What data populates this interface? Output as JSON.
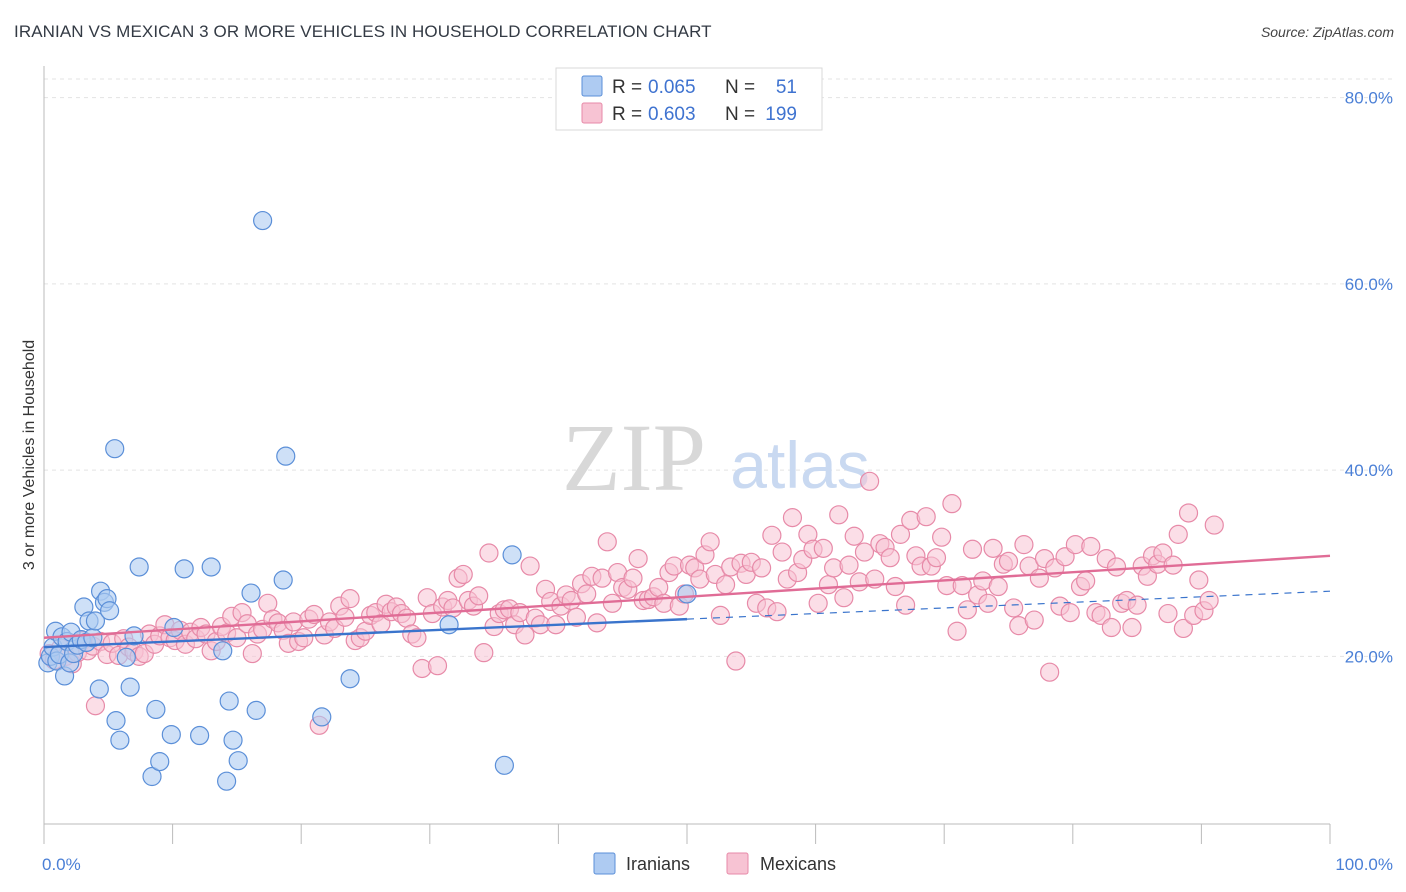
{
  "title": "IRANIAN VS MEXICAN 3 OR MORE VEHICLES IN HOUSEHOLD CORRELATION CHART",
  "source": "Source: ZipAtlas.com",
  "watermark": {
    "zip": "ZIP",
    "atlas": "atlas"
  },
  "legend_top": {
    "rows": [
      {
        "r_label": "R = ",
        "r_value": "0.065",
        "n_label": "N = ",
        "n_value": "51"
      },
      {
        "r_label": "R = ",
        "r_value": "0.603",
        "n_label": "N = ",
        "n_value": "199"
      }
    ]
  },
  "legend_bottom": {
    "iranians": "Iranians",
    "mexicans": "Mexicans"
  },
  "colors": {
    "iranian_fill": "#aecbf2",
    "iranian_stroke": "#5b8fd8",
    "iranian_line": "#3a74cc",
    "mexican_fill": "#f7c3d3",
    "mexican_stroke": "#e78aa8",
    "mexican_line": "#e06c96",
    "tick_text": "#4a7fd6"
  },
  "chart_data": {
    "type": "scatter",
    "ylabel": "3 or more Vehicles in Household",
    "xlim": [
      0,
      100
    ],
    "ylim": [
      2,
      82
    ],
    "x_tick_labels": [
      "0.0%",
      "100.0%"
    ],
    "y_ticks": [
      20,
      40,
      60,
      80
    ],
    "y_tick_labels": [
      "20.0%",
      "40.0%",
      "60.0%",
      "80.0%"
    ],
    "grid": true,
    "legend_position": "top-center",
    "series": [
      {
        "name": "Iranians",
        "R": 0.065,
        "N": 51,
        "trend": {
          "x0": 0,
          "y0": 21.0,
          "x1": 50,
          "y1": 24.0,
          "dashed_to_x": 100,
          "dashed_to_y": 27.0
        },
        "points": [
          [
            0.3,
            19.3
          ],
          [
            0.5,
            20.0
          ],
          [
            0.7,
            21.0
          ],
          [
            0.9,
            22.7
          ],
          [
            1.0,
            19.5
          ],
          [
            1.2,
            20.2
          ],
          [
            1.4,
            22.1
          ],
          [
            1.6,
            17.9
          ],
          [
            1.8,
            21.6
          ],
          [
            2.0,
            19.3
          ],
          [
            2.1,
            22.6
          ],
          [
            2.3,
            20.3
          ],
          [
            2.6,
            21.2
          ],
          [
            2.9,
            21.8
          ],
          [
            3.1,
            25.3
          ],
          [
            3.3,
            21.5
          ],
          [
            3.5,
            23.8
          ],
          [
            3.8,
            22.0
          ],
          [
            4.0,
            23.8
          ],
          [
            4.3,
            16.5
          ],
          [
            4.4,
            27.0
          ],
          [
            4.7,
            25.8
          ],
          [
            4.9,
            26.2
          ],
          [
            5.1,
            24.9
          ],
          [
            5.5,
            42.3
          ],
          [
            5.6,
            13.1
          ],
          [
            5.9,
            11.0
          ],
          [
            6.4,
            19.9
          ],
          [
            6.7,
            16.7
          ],
          [
            7.0,
            22.2
          ],
          [
            7.4,
            29.6
          ],
          [
            8.4,
            7.1
          ],
          [
            8.7,
            14.3
          ],
          [
            9.0,
            8.7
          ],
          [
            9.9,
            11.6
          ],
          [
            10.1,
            23.1
          ],
          [
            10.9,
            29.4
          ],
          [
            12.1,
            11.5
          ],
          [
            13.0,
            29.6
          ],
          [
            13.9,
            20.6
          ],
          [
            14.2,
            6.6
          ],
          [
            14.4,
            15.2
          ],
          [
            14.7,
            11.0
          ],
          [
            15.1,
            8.8
          ],
          [
            16.1,
            26.8
          ],
          [
            16.5,
            14.2
          ],
          [
            17.0,
            66.8
          ],
          [
            18.6,
            28.2
          ],
          [
            18.8,
            41.5
          ],
          [
            21.6,
            13.5
          ],
          [
            23.8,
            17.6
          ],
          [
            31.5,
            23.4
          ],
          [
            35.8,
            8.3
          ],
          [
            36.4,
            30.9
          ],
          [
            50.0,
            26.7
          ]
        ]
      },
      {
        "name": "Mexicans",
        "R": 0.603,
        "N": 199,
        "trend": {
          "x0": 0,
          "y0": 22.0,
          "x1": 100,
          "y1": 30.8
        },
        "points": [
          [
            0.4,
            20.3
          ],
          [
            0.8,
            19.6
          ],
          [
            1.3,
            20.9
          ],
          [
            1.7,
            20.0
          ],
          [
            2.2,
            19.2
          ],
          [
            2.6,
            20.4
          ],
          [
            3.0,
            21.7
          ],
          [
            3.4,
            20.6
          ],
          [
            3.8,
            21.1
          ],
          [
            4.0,
            14.7
          ],
          [
            4.4,
            21.6
          ],
          [
            4.9,
            20.2
          ],
          [
            5.3,
            21.4
          ],
          [
            5.8,
            20.1
          ],
          [
            6.2,
            21.9
          ],
          [
            6.6,
            21.0
          ],
          [
            7.0,
            20.5
          ],
          [
            7.4,
            20.0
          ],
          [
            7.8,
            20.3
          ],
          [
            8.2,
            22.4
          ],
          [
            8.6,
            21.3
          ],
          [
            9.0,
            22.2
          ],
          [
            9.4,
            23.4
          ],
          [
            9.8,
            22.0
          ],
          [
            10.2,
            21.7
          ],
          [
            10.6,
            22.8
          ],
          [
            11.0,
            21.3
          ],
          [
            11.4,
            22.6
          ],
          [
            11.8,
            21.9
          ],
          [
            12.2,
            23.1
          ],
          [
            12.6,
            22.4
          ],
          [
            13.0,
            20.6
          ],
          [
            13.4,
            21.6
          ],
          [
            13.8,
            23.2
          ],
          [
            14.2,
            22.5
          ],
          [
            14.6,
            24.3
          ],
          [
            15.0,
            22.0
          ],
          [
            15.4,
            24.7
          ],
          [
            15.8,
            23.5
          ],
          [
            16.2,
            20.3
          ],
          [
            16.6,
            22.4
          ],
          [
            17.0,
            22.9
          ],
          [
            17.4,
            25.7
          ],
          [
            17.8,
            24.0
          ],
          [
            18.2,
            23.6
          ],
          [
            18.6,
            22.8
          ],
          [
            19.0,
            21.4
          ],
          [
            19.4,
            23.7
          ],
          [
            19.8,
            21.6
          ],
          [
            20.2,
            22.0
          ],
          [
            20.6,
            24.0
          ],
          [
            21.0,
            24.5
          ],
          [
            21.4,
            12.6
          ],
          [
            21.8,
            22.3
          ],
          [
            22.2,
            23.7
          ],
          [
            22.6,
            23.0
          ],
          [
            23.0,
            25.4
          ],
          [
            23.4,
            24.2
          ],
          [
            23.8,
            26.2
          ],
          [
            24.2,
            21.7
          ],
          [
            24.6,
            22.0
          ],
          [
            25.0,
            22.7
          ],
          [
            25.4,
            24.4
          ],
          [
            25.8,
            24.7
          ],
          [
            26.2,
            23.5
          ],
          [
            26.6,
            25.6
          ],
          [
            27.0,
            24.8
          ],
          [
            27.4,
            25.3
          ],
          [
            27.8,
            24.6
          ],
          [
            28.2,
            24.1
          ],
          [
            28.6,
            22.4
          ],
          [
            29.0,
            22.0
          ],
          [
            29.4,
            18.7
          ],
          [
            29.8,
            26.3
          ],
          [
            30.2,
            24.6
          ],
          [
            30.6,
            19.0
          ],
          [
            31.0,
            25.3
          ],
          [
            31.4,
            26.0
          ],
          [
            31.8,
            25.2
          ],
          [
            32.2,
            28.4
          ],
          [
            32.6,
            28.8
          ],
          [
            33.0,
            26.0
          ],
          [
            33.4,
            25.4
          ],
          [
            33.8,
            26.5
          ],
          [
            34.2,
            20.4
          ],
          [
            34.6,
            31.1
          ],
          [
            35.0,
            23.2
          ],
          [
            35.4,
            24.6
          ],
          [
            35.8,
            25.0
          ],
          [
            36.2,
            25.1
          ],
          [
            36.6,
            23.4
          ],
          [
            37.0,
            24.7
          ],
          [
            37.4,
            22.3
          ],
          [
            37.8,
            29.7
          ],
          [
            38.2,
            24.1
          ],
          [
            38.6,
            23.4
          ],
          [
            39.0,
            27.2
          ],
          [
            39.4,
            25.9
          ],
          [
            39.8,
            23.4
          ],
          [
            40.2,
            25.4
          ],
          [
            40.6,
            26.6
          ],
          [
            41.0,
            26.0
          ],
          [
            41.4,
            24.2
          ],
          [
            41.8,
            27.8
          ],
          [
            42.2,
            26.7
          ],
          [
            42.6,
            28.6
          ],
          [
            43.0,
            23.6
          ],
          [
            43.4,
            28.4
          ],
          [
            43.8,
            32.3
          ],
          [
            44.2,
            25.7
          ],
          [
            44.6,
            29.0
          ],
          [
            45.0,
            27.4
          ],
          [
            45.4,
            27.2
          ],
          [
            45.8,
            28.4
          ],
          [
            46.2,
            30.5
          ],
          [
            46.6,
            26.0
          ],
          [
            47.0,
            26.1
          ],
          [
            47.4,
            26.4
          ],
          [
            47.8,
            27.4
          ],
          [
            48.2,
            25.7
          ],
          [
            48.6,
            29.0
          ],
          [
            49.0,
            29.7
          ],
          [
            49.4,
            25.4
          ],
          [
            49.8,
            26.7
          ],
          [
            50.2,
            29.8
          ],
          [
            50.6,
            29.5
          ],
          [
            51.0,
            28.3
          ],
          [
            51.4,
            30.9
          ],
          [
            51.8,
            32.3
          ],
          [
            52.2,
            28.8
          ],
          [
            52.6,
            24.4
          ],
          [
            53.0,
            27.7
          ],
          [
            53.4,
            29.6
          ],
          [
            53.8,
            19.5
          ],
          [
            54.2,
            30.0
          ],
          [
            54.6,
            28.8
          ],
          [
            55.0,
            30.1
          ],
          [
            55.4,
            25.7
          ],
          [
            55.8,
            29.5
          ],
          [
            56.2,
            25.2
          ],
          [
            56.6,
            33.0
          ],
          [
            57.0,
            24.8
          ],
          [
            57.4,
            31.2
          ],
          [
            57.8,
            28.3
          ],
          [
            58.2,
            34.9
          ],
          [
            58.6,
            29.0
          ],
          [
            59.0,
            30.4
          ],
          [
            59.4,
            33.1
          ],
          [
            59.8,
            31.5
          ],
          [
            60.2,
            25.7
          ],
          [
            60.6,
            31.6
          ],
          [
            61.0,
            27.7
          ],
          [
            61.4,
            29.5
          ],
          [
            61.8,
            35.2
          ],
          [
            62.2,
            26.3
          ],
          [
            62.6,
            29.8
          ],
          [
            63.0,
            32.9
          ],
          [
            63.4,
            28.0
          ],
          [
            63.8,
            31.2
          ],
          [
            64.2,
            38.8
          ],
          [
            64.6,
            28.3
          ],
          [
            65.0,
            32.1
          ],
          [
            65.4,
            31.7
          ],
          [
            65.8,
            30.6
          ],
          [
            66.2,
            27.5
          ],
          [
            66.6,
            33.1
          ],
          [
            67.0,
            25.5
          ],
          [
            67.4,
            34.6
          ],
          [
            67.8,
            30.8
          ],
          [
            68.2,
            29.7
          ],
          [
            68.6,
            35.0
          ],
          [
            69.0,
            29.7
          ],
          [
            69.4,
            30.6
          ],
          [
            69.8,
            32.8
          ],
          [
            70.2,
            27.6
          ],
          [
            70.6,
            36.4
          ],
          [
            71.0,
            22.7
          ],
          [
            71.4,
            27.6
          ],
          [
            71.8,
            25.0
          ],
          [
            72.2,
            31.5
          ],
          [
            72.6,
            26.6
          ],
          [
            73.0,
            28.1
          ],
          [
            73.4,
            25.7
          ],
          [
            73.8,
            31.6
          ],
          [
            74.2,
            27.5
          ],
          [
            74.6,
            29.9
          ],
          [
            75.0,
            30.2
          ],
          [
            75.4,
            25.2
          ],
          [
            75.8,
            23.3
          ],
          [
            76.2,
            32.0
          ],
          [
            76.6,
            29.7
          ],
          [
            77.0,
            23.9
          ],
          [
            77.4,
            28.4
          ],
          [
            77.8,
            30.5
          ],
          [
            78.2,
            18.3
          ],
          [
            78.6,
            29.5
          ],
          [
            79.0,
            25.4
          ],
          [
            79.4,
            30.7
          ],
          [
            79.8,
            24.7
          ],
          [
            80.2,
            32.0
          ],
          [
            80.6,
            27.5
          ],
          [
            81.0,
            28.1
          ],
          [
            81.4,
            31.8
          ],
          [
            81.8,
            24.7
          ],
          [
            82.2,
            24.4
          ],
          [
            82.6,
            30.5
          ],
          [
            83.0,
            23.1
          ],
          [
            83.4,
            29.6
          ],
          [
            83.8,
            25.7
          ],
          [
            84.2,
            26.0
          ],
          [
            84.6,
            23.1
          ],
          [
            85.0,
            25.5
          ],
          [
            85.4,
            29.7
          ],
          [
            85.8,
            28.6
          ],
          [
            86.2,
            30.8
          ],
          [
            86.6,
            29.9
          ],
          [
            87.0,
            31.1
          ],
          [
            87.4,
            24.6
          ],
          [
            87.8,
            29.8
          ],
          [
            88.2,
            33.1
          ],
          [
            88.6,
            23.0
          ],
          [
            89.0,
            35.4
          ],
          [
            89.4,
            24.4
          ],
          [
            89.8,
            28.2
          ],
          [
            90.2,
            24.9
          ],
          [
            90.6,
            26.0
          ],
          [
            91.0,
            34.1
          ]
        ]
      }
    ]
  }
}
